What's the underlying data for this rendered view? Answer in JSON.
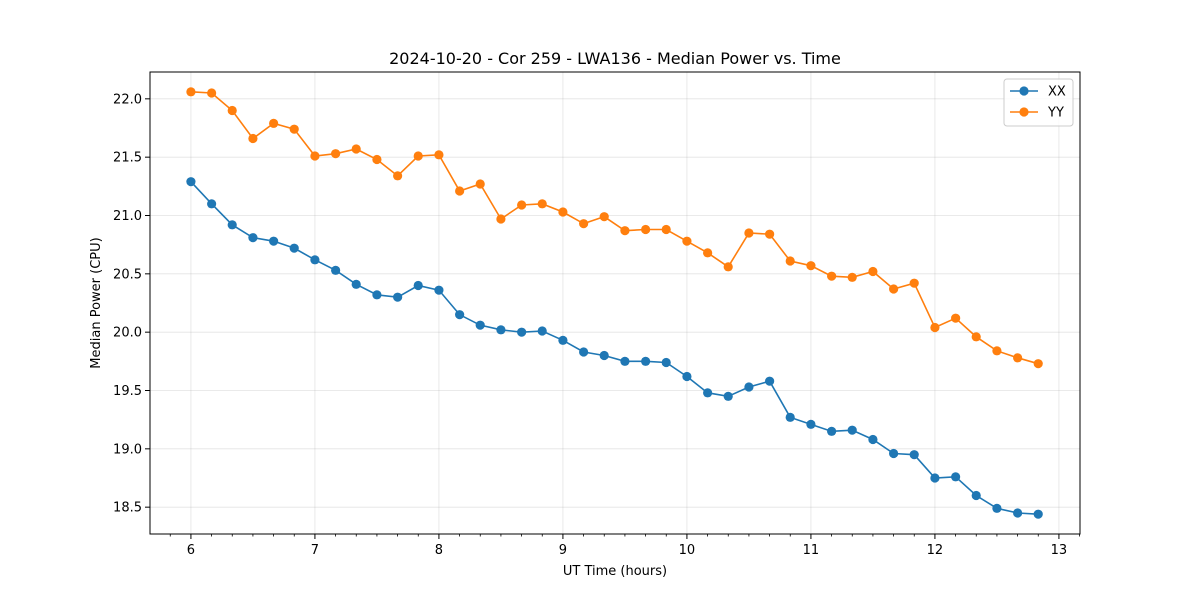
{
  "chart_data": {
    "type": "line",
    "title": "2024-10-20 - Cor 259 - LWA136 - Median Power vs. Time",
    "xlabel": "UT Time (hours)",
    "ylabel": "Median Power (CPU)",
    "xlim": [
      5.67,
      13.17
    ],
    "ylim": [
      18.27,
      22.23
    ],
    "xticks": [
      6,
      7,
      8,
      9,
      10,
      11,
      12,
      13
    ],
    "xtick_labels": [
      "6",
      "7",
      "8",
      "9",
      "10",
      "11",
      "12",
      "13"
    ],
    "yticks": [
      18.5,
      19.0,
      19.5,
      20.0,
      20.5,
      21.0,
      21.5,
      22.0
    ],
    "ytick_labels": [
      "18.5",
      "19.0",
      "19.5",
      "20.0",
      "20.5",
      "21.0",
      "21.5",
      "22.0"
    ],
    "grid": true,
    "legend_position": "top-right",
    "x": [
      6.0,
      6.167,
      6.333,
      6.5,
      6.667,
      6.833,
      7.0,
      7.167,
      7.333,
      7.5,
      7.667,
      7.833,
      8.0,
      8.167,
      8.333,
      8.5,
      8.667,
      8.833,
      9.0,
      9.167,
      9.333,
      9.5,
      9.667,
      9.833,
      10.0,
      10.167,
      10.333,
      10.5,
      10.667,
      10.833,
      11.0,
      11.167,
      11.333,
      11.5,
      11.667,
      11.833,
      12.0,
      12.167,
      12.333,
      12.5,
      12.667,
      12.833
    ],
    "series": [
      {
        "name": "XX",
        "color": "#1f77b4",
        "values": [
          21.29,
          21.1,
          20.92,
          20.81,
          20.78,
          20.72,
          20.62,
          20.53,
          20.41,
          20.32,
          20.3,
          20.4,
          20.36,
          20.15,
          20.06,
          20.02,
          20.0,
          20.01,
          19.93,
          19.83,
          19.8,
          19.75,
          19.75,
          19.74,
          19.62,
          19.48,
          19.45,
          19.53,
          19.58,
          19.27,
          19.21,
          19.15,
          19.16,
          19.08,
          18.96,
          18.95,
          18.75,
          18.76,
          18.6,
          18.49,
          18.45,
          18.44
        ]
      },
      {
        "name": "YY",
        "color": "#ff7f0e",
        "values": [
          22.06,
          22.05,
          21.9,
          21.66,
          21.79,
          21.74,
          21.51,
          21.53,
          21.57,
          21.48,
          21.34,
          21.51,
          21.52,
          21.21,
          21.27,
          20.97,
          21.09,
          21.1,
          21.03,
          20.93,
          20.99,
          20.87,
          20.88,
          20.88,
          20.78,
          20.68,
          20.56,
          20.85,
          20.84,
          20.61,
          20.57,
          20.48,
          20.47,
          20.52,
          20.37,
          20.42,
          20.04,
          20.12,
          19.96,
          19.84,
          19.78,
          19.73
        ]
      }
    ]
  }
}
